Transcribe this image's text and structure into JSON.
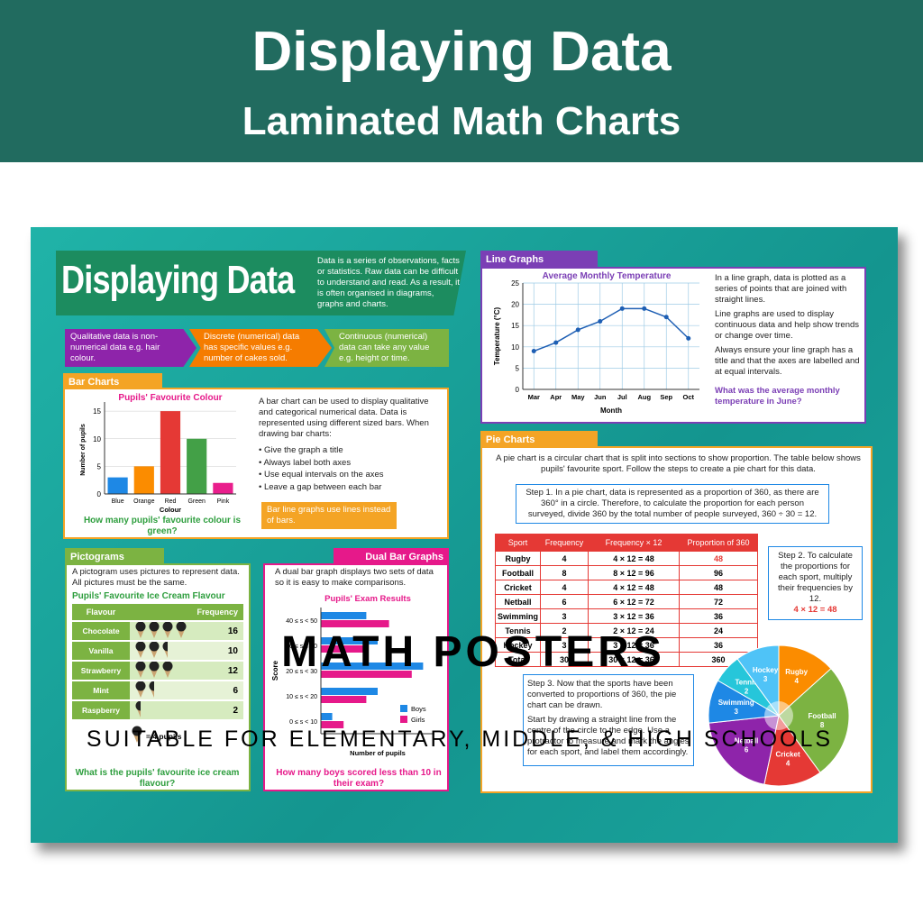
{
  "header": {
    "title": "Displaying Data",
    "subtitle": "Laminated Math Charts"
  },
  "poster": {
    "title": "Displaying Data",
    "intro": "Data is a series of observations, facts or statistics. Raw data can be difficult to understand and read. As a result, it is often organised in diagrams, graphs and charts.",
    "data_types": [
      "Qualitative data is non-numerical data e.g. hair colour.",
      "Discrete (numerical) data has specific values e.g. number of cakes sold.",
      "Continuous (numerical) data can take any value e.g. height or time."
    ],
    "bar_charts": {
      "heading": "Bar Charts",
      "chart": {
        "type": "bar",
        "title": "Pupils' Favourite Colour",
        "x_label": "Colour",
        "y_label": "Number of pupils",
        "categories": [
          "Blue",
          "Orange",
          "Red",
          "Green",
          "Pink"
        ],
        "values": [
          3,
          5,
          15,
          10,
          2
        ],
        "colors": [
          "#1e88e5",
          "#fb8c00",
          "#e53935",
          "#43a047",
          "#e91e8c"
        ],
        "ylim": [
          0,
          16
        ],
        "yticks": [
          0,
          5,
          10,
          15
        ]
      },
      "text": "A bar chart can be used to display qualitative and categorical numerical data. Data is represented using different sized bars. When drawing bar charts:",
      "tips": [
        "Give the graph a title",
        "Always label both axes",
        "Use equal intervals on the axes",
        "Leave a gap between each bar"
      ],
      "note": "Bar line graphs use lines instead of bars.",
      "question": "How many pupils' favourite colour is green?"
    },
    "line_graphs": {
      "heading": "Line Graphs",
      "chart": {
        "type": "line",
        "title": "Average Monthly Temperature",
        "x_label": "Month",
        "y_label": "Temperature (°C)",
        "categories": [
          "Mar",
          "Apr",
          "May",
          "Jun",
          "Jul",
          "Aug",
          "Sep",
          "Oct"
        ],
        "values": [
          9,
          11,
          14,
          16,
          19,
          19,
          17,
          12
        ],
        "color": "#1e5fb4",
        "ylim": [
          0,
          25
        ],
        "yticks": [
          0,
          5,
          10,
          15,
          20,
          25
        ]
      },
      "paragraphs": [
        "In a line graph, data is plotted as a series of points that are joined with straight lines.",
        "Line graphs are used to display continuous data and help show trends or change over time.",
        "Always ensure your line graph has a title and that the axes are labelled and at equal intervals."
      ],
      "question": "What was the average monthly temperature in June?"
    },
    "pie_charts": {
      "heading": "Pie Charts",
      "intro": "A pie chart is a circular chart that is split into sections to show proportion. The table below shows pupils' favourite sport. Follow the steps to create a pie chart for this data.",
      "step1": "Step 1. In a pie chart, data is represented as a proportion of 360, as there are 360° in a circle. Therefore, to calculate the proportion for each person surveyed, divide 360 by the total number of people surveyed, 360 ÷ 30 = 12.",
      "step2": "Step 2. To calculate the proportions for each sport, multiply their frequencies by 12.",
      "step2_example": "4 × 12 = 48",
      "step3": [
        "Step 3. Now that the sports have been converted to proportions of 360, the pie chart can be drawn.",
        "Start by drawing a straight line from the centre of the circle to the edge. Use a protractor to measure and mark the angles for each sport, and label them accordingly."
      ],
      "table": {
        "columns": [
          "Sport",
          "Frequency",
          "Frequency × 12",
          "Proportion of 360"
        ],
        "rows": [
          [
            "Rugby",
            4,
            "4 × 12 = 48",
            48
          ],
          [
            "Football",
            8,
            "8 × 12 = 96",
            96
          ],
          [
            "Cricket",
            4,
            "4 × 12 = 48",
            48
          ],
          [
            "Netball",
            6,
            "6 × 12 = 72",
            72
          ],
          [
            "Swimming",
            3,
            "3 × 12 = 36",
            36
          ],
          [
            "Tennis",
            2,
            "2 × 12 = 24",
            24
          ],
          [
            "Hockey",
            3,
            "3 × 12 = 36",
            36
          ]
        ],
        "total": [
          "Total",
          30,
          "30 × 12 = 360",
          360
        ]
      },
      "pie_colors": [
        "#fb8c00",
        "#7cb342",
        "#e53935",
        "#8e24aa",
        "#1e88e5",
        "#26c6da",
        "#4fc3f7"
      ]
    },
    "pictograms": {
      "heading": "Pictograms",
      "text": "A pictogram uses pictures to represent data. All pictures must be the same.",
      "title": "Pupils' Favourite Ice Cream Flavour",
      "columns": [
        "Flavour",
        "Frequency"
      ],
      "categories": [
        "Chocolate",
        "Vanilla",
        "Strawberry",
        "Mint",
        "Raspberry"
      ],
      "values": [
        16,
        10,
        12,
        6,
        2
      ],
      "key_value": 4,
      "key": "= 4 pupils",
      "question": "What is the pupils' favourite ice cream flavour?"
    },
    "dual_bar_graphs": {
      "heading": "Dual Bar Graphs",
      "text": "A dual bar graph displays two sets of data so it is easy to make comparisons.",
      "chart": {
        "type": "bar",
        "orientation": "horizontal",
        "title": "Pupils' Exam Results",
        "x_label": "Number of pupils",
        "y_label": "Score",
        "categories": [
          "40 ≤ s < 50",
          "30 ≤ s < 40",
          "20 ≤ s < 30",
          "10 ≤ s < 20",
          "0 ≤ s < 10"
        ],
        "series": [
          {
            "name": "Boys",
            "color": "#1e88e5",
            "values": [
              4,
              5,
              9,
              5,
              1
            ]
          },
          {
            "name": "Girls",
            "color": "#e6198a",
            "values": [
              6,
              4,
              8,
              4,
              2
            ]
          }
        ],
        "xlim": [
          0,
          10
        ]
      },
      "question": "How many boys scored less than 10 in their exam?"
    }
  },
  "overlay": {
    "title": "MATH POSTERS",
    "subtitle": "SUITABLE FOR ELEMENTARY, MIDDLE, & HIGH SCHOOLS"
  }
}
